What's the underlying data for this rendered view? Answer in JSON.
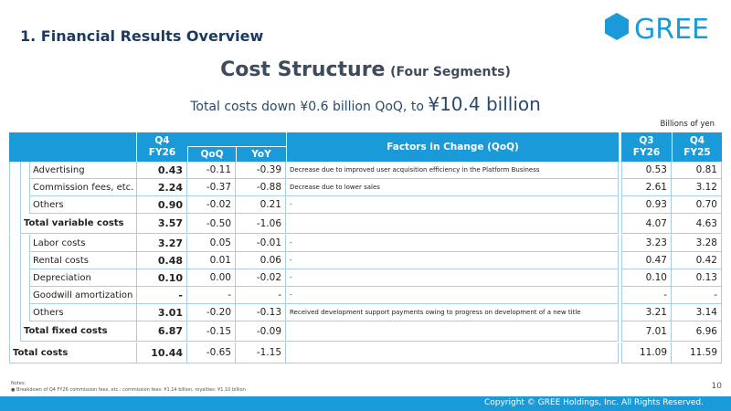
{
  "header": {
    "section": "1. Financial Results Overview",
    "logo": "GREE",
    "title": "Cost Structure",
    "title_note": "(Four Segments)",
    "subtitle": "Total costs down ¥0.6 billion QoQ, to ",
    "subtitle_emphasis": "¥10.4 billion",
    "unit": "Billions of yen"
  },
  "table": {
    "columns": {
      "q4_line1": "Q4",
      "q4_line2": "FY26",
      "qoq": "QoQ",
      "yoy": "YoY",
      "factors": "Factors in Change (QoQ)",
      "q3_line1": "Q3",
      "q3_line2": "FY26",
      "prev_line1": "Q4",
      "prev_line2": "FY25"
    },
    "rows": [
      [
        "Advertising",
        "0.43",
        "-0.11",
        "-0.39",
        "Decrease due to improved user acquisition efficiency in the Platform Business",
        "0.53",
        "0.81"
      ],
      [
        "Commission fees, etc.",
        "2.24",
        "-0.37",
        "-0.88",
        "Decrease due to lower sales",
        "2.61",
        "3.12"
      ],
      [
        "Others",
        "0.90",
        "-0.02",
        "0.21",
        "-",
        "0.93",
        "0.70"
      ],
      [
        "Total variable costs",
        "3.57",
        "-0.50",
        "-1.06",
        null,
        "4.07",
        "4.63"
      ],
      [
        "Labor costs",
        "3.27",
        "0.05",
        "-0.01",
        "-",
        "3.23",
        "3.28"
      ],
      [
        "Rental costs",
        "0.48",
        "0.01",
        "0.06",
        "-",
        "0.47",
        "0.42"
      ],
      [
        "Depreciation",
        "0.10",
        "0.00",
        "-0.02",
        "-",
        "0.10",
        "0.13"
      ],
      [
        "Goodwill amortization",
        "-",
        "-",
        "-",
        "-",
        "-",
        "-"
      ],
      [
        "Others",
        "3.01",
        "-0.20",
        "-0.13",
        "Received development support payments owing to progress on development of a new title",
        "3.21",
        "3.14"
      ],
      [
        "Total fixed costs",
        "6.87",
        "-0.15",
        "-0.09",
        null,
        "7.01",
        "6.96"
      ],
      [
        "Total costs",
        "10.44",
        "-0.65",
        "-1.15",
        null,
        "11.09",
        "11.59"
      ]
    ]
  },
  "footer": {
    "notes_title": "Notes:",
    "note": "Breakdown of Q4 FY26 commission fees, etc.: commission fees: ¥1.14 billion, royalties: ¥1.10 billion",
    "page": "10",
    "copyright": "Copyright © GREE Holdings, Inc. All Rights Reserved."
  }
}
